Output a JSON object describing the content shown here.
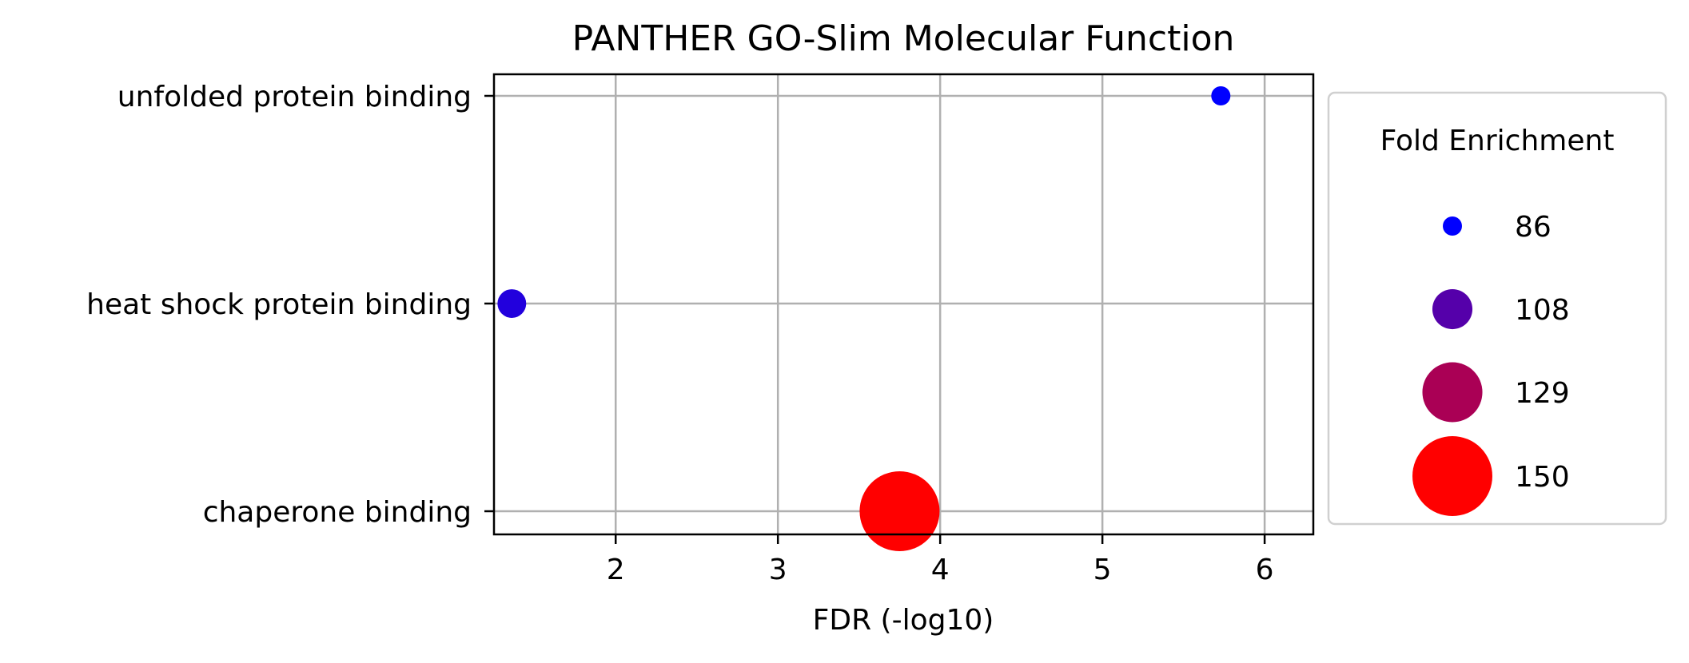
{
  "chart_data": {
    "type": "scatter",
    "title": "PANTHER GO-Slim Molecular Function",
    "xlabel": "FDR (-log10)",
    "ylabel": "",
    "xlim": [
      1.25,
      6.3
    ],
    "xticks": [
      2,
      3,
      4,
      5,
      6
    ],
    "xtick_labels": [
      "2",
      "3",
      "4",
      "5",
      "6"
    ],
    "categories": [
      "unfolded protein binding",
      "heat shock protein binding",
      "chaperone binding"
    ],
    "grid": true,
    "points": [
      {
        "category": "unfolded protein binding",
        "x": 5.73,
        "fold_enrichment": 86,
        "color": "#0000ff"
      },
      {
        "category": "heat shock protein binding",
        "x": 1.36,
        "fold_enrichment": 96,
        "color": "#2200dd"
      },
      {
        "category": "chaperone binding",
        "x": 3.75,
        "fold_enrichment": 150,
        "color": "#ff0000"
      }
    ],
    "legend": {
      "title": "Fold Enrichment",
      "placement": "outside-right",
      "entries": [
        {
          "label": "86",
          "value": 86,
          "color": "#0000ff"
        },
        {
          "label": "108",
          "value": 108,
          "color": "#5500aa"
        },
        {
          "label": "129",
          "value": 129,
          "color": "#aa0055"
        },
        {
          "label": "150",
          "value": 150,
          "color": "#ff0000"
        }
      ]
    }
  }
}
